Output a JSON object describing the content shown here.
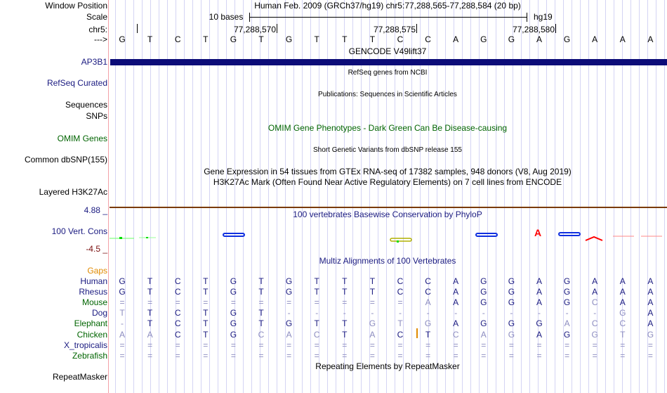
{
  "labels": {
    "window_position": "Window Position",
    "scale": "Scale",
    "chrom": "chr5:",
    "strand": "--->",
    "gene": "AP3B1",
    "refseq": "RefSeq Curated",
    "sequences": "Sequences",
    "snps": "SNPs",
    "omim": "OMIM Genes",
    "dbsnp": "Common dbSNP(155)",
    "h3k27ac": "Layered H3K27Ac",
    "cons_max": "4.88 _",
    "cons": "100 Vert. Cons",
    "cons_min": "-4.5 _",
    "gaps": "Gaps",
    "repeatmasker": "RepeatMasker"
  },
  "header": {
    "assembly": "Human Feb. 2009 (GRCh37/hg19)   chr5:77,288,565-77,288,584 (20 bp)",
    "scale_text": "10 bases",
    "scale_db": "hg19",
    "pos1": "77,288,570",
    "pos2": "77,288,575",
    "pos3": "77,288,580"
  },
  "tracks": {
    "gencode": "GENCODE V49lift37",
    "refseq": "RefSeq genes from NCBI",
    "pubs": "Publications: Sequences in Scientific Articles",
    "omim": "OMIM Gene Phenotypes - Dark Green Can Be Disease-causing",
    "snp": "Short Genetic Variants from dbSNP release 155",
    "gtex": "Gene Expression in 54 tissues from GTEx RNA-seq of 17382 samples, 948 donors (V8, Aug 2019)",
    "h3k": "H3K27Ac Mark (Often Found Near Active Regulatory Elements) on 7 cell lines from ENCODE",
    "phylop": "100 vertebrates Basewise Conservation by PhyloP",
    "multiz": "Multiz Alignments of 100 Vertebrates",
    "rmsk": "Repeating Elements by RepeatMasker"
  },
  "sequence": "GTCTGTGTTTCCAGGAGAAA",
  "colors": {
    "gene": "#0c0c78",
    "navy": "#1a1a80",
    "green": "#006400",
    "gaps": "#e08a00",
    "divider": "#7a3a00"
  },
  "alignment": [
    {
      "species": "Human",
      "color": "navy",
      "bases": "GTCTGTGTTTCCAGGAGAAA",
      "light": ""
    },
    {
      "species": "Rhesus",
      "color": "navy",
      "bases": "GTCTGTGTTTCCAGGAGAAA",
      "light": ""
    },
    {
      "species": "Mouse",
      "color": "green",
      "bases": "===========AAGGAGCAA",
      "light": "00000000000100000100"
    },
    {
      "species": "Dog",
      "color": "navy",
      "bases": "TTCTGT------------GA",
      "light": "10000000000000000010"
    },
    {
      "species": "Elephant",
      "color": "green",
      "bases": "-TCTGTGTTGTGAGGGACCA",
      "light": "00000000011100001110"
    },
    {
      "species": "Chicken",
      "color": "green",
      "bases": "AACTGCACTACTCAGAGGTG",
      "light": "11000111010011100111"
    },
    {
      "species": "X_tropicalis",
      "color": "navy",
      "bases": "====================",
      "light": ""
    },
    {
      "species": "Zebrafish",
      "color": "green",
      "bases": "====================",
      "light": ""
    }
  ]
}
